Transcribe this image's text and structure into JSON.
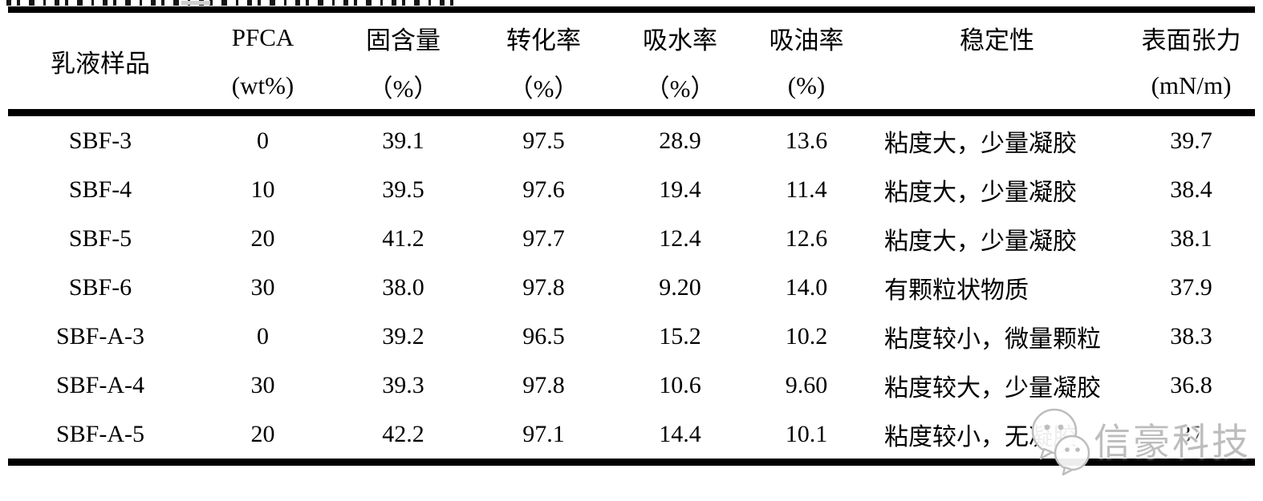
{
  "colors": {
    "background": "#ffffff",
    "text": "#000000",
    "rule": "#000000",
    "watermark_gray": "#bdbdbd"
  },
  "table": {
    "columns": [
      {
        "id": "sample",
        "title": "乳液样品",
        "unit": ""
      },
      {
        "id": "pfca",
        "title": "PFCA",
        "unit": "(wt%)"
      },
      {
        "id": "solid",
        "title": "固含量",
        "unit": "（%）"
      },
      {
        "id": "conversion",
        "title": "转化率",
        "unit": "（%）"
      },
      {
        "id": "water",
        "title": "吸水率",
        "unit": "（%）"
      },
      {
        "id": "oil",
        "title": "吸油率",
        "unit": "(%)"
      },
      {
        "id": "stability",
        "title": "稳定性",
        "unit": ""
      },
      {
        "id": "surface",
        "title": "表面张力",
        "unit": "(mN/m)"
      }
    ],
    "rows": [
      [
        "SBF-3",
        "0",
        "39.1",
        "97.5",
        "28.9",
        "13.6",
        "粘度大，少量凝胶",
        "39.7"
      ],
      [
        "SBF-4",
        "10",
        "39.5",
        "97.6",
        "19.4",
        "11.4",
        "粘度大，少量凝胶",
        "38.4"
      ],
      [
        "SBF-5",
        "20",
        "41.2",
        "97.7",
        "12.4",
        "12.6",
        "粘度大，少量凝胶",
        "38.1"
      ],
      [
        "SBF-6",
        "30",
        "38.0",
        "97.8",
        "9.20",
        "14.0",
        "有颗粒状物质",
        "37.9"
      ],
      [
        "SBF-A-3",
        "0",
        "39.2",
        "96.5",
        "15.2",
        "10.2",
        "粘度较小，微量颗粒",
        "38.3"
      ],
      [
        "SBF-A-4",
        "30",
        "39.3",
        "97.8",
        "10.6",
        "9.60",
        "粘度较大，少量凝胶",
        "36.8"
      ],
      [
        "SBF-A-5",
        "20",
        "42.2",
        "97.1",
        "14.4",
        "10.1",
        "粘度较小，无凝胶",
        "37"
      ]
    ]
  },
  "watermark": {
    "text": "信豪科技",
    "logo": "wechat-bubbles-icon"
  }
}
